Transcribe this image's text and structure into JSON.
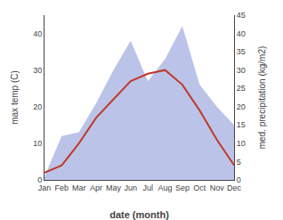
{
  "chart_data": {
    "type": "line",
    "categories": [
      "Jan",
      "Feb",
      "Mar",
      "Apr",
      "May",
      "Jun",
      "Jul",
      "Aug",
      "Sep",
      "Oct",
      "Nov",
      "Dec"
    ],
    "xlabel": "date (month)",
    "ylabel": "max temp (C)",
    "y2label": "med. precipitation (kg/m2)",
    "series": [
      {
        "type": "area",
        "axis": "y2",
        "color": "#bbc4e8",
        "values": [
          1,
          12,
          13,
          21,
          30,
          38,
          27,
          33,
          42,
          26,
          20,
          15
        ]
      },
      {
        "type": "line",
        "color": "#c0392b",
        "values": [
          2,
          4,
          10,
          17,
          22,
          27,
          29,
          30,
          26,
          19,
          11,
          4
        ]
      }
    ],
    "ylim": [
      0,
      45
    ],
    "yticks": [
      0,
      10,
      20,
      30,
      40
    ],
    "y2lim": [
      0,
      45
    ],
    "y2ticks": [
      0,
      5,
      10,
      15,
      20,
      25,
      30,
      35,
      40,
      45
    ],
    "grid": false
  }
}
